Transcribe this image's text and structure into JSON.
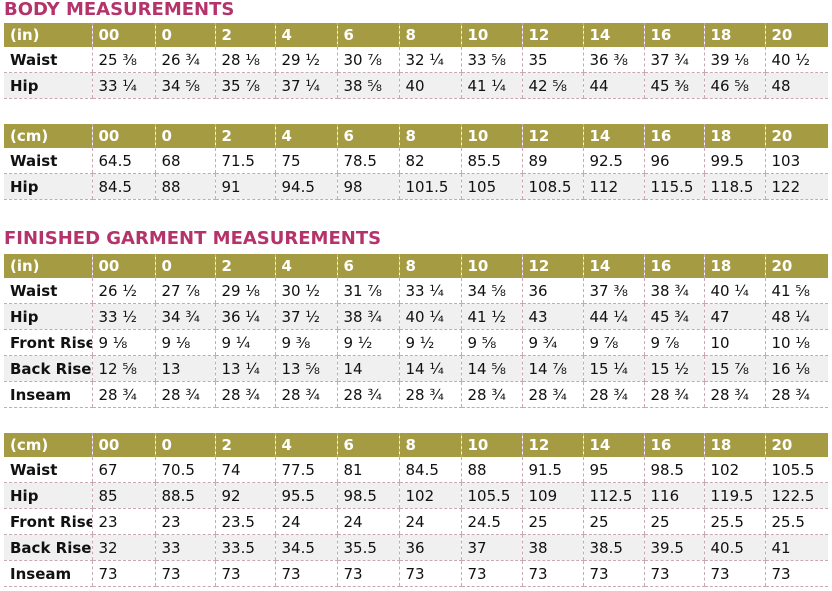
{
  "body": {
    "title": "BODY MEASUREMENTS",
    "in": {
      "header": [
        "(in)",
        "00",
        "0",
        "2",
        "4",
        "6",
        "8",
        "10",
        "12",
        "14",
        "16",
        "18",
        "20"
      ],
      "rows": [
        [
          "Waist",
          "25 ⅜",
          "26 ¾",
          "28 ⅛",
          "29 ½",
          "30 ⅞",
          "32 ¼",
          "33 ⅝",
          "35",
          "36 ⅜",
          "37 ¾",
          "39 ⅛",
          "40 ½"
        ],
        [
          "Hip",
          "33 ¼",
          "34 ⅝",
          "35 ⅞",
          "37 ¼",
          "38 ⅝",
          "40",
          "41 ¼",
          "42 ⅝",
          "44",
          "45 ⅜",
          "46 ⅝",
          "48"
        ]
      ]
    },
    "cm": {
      "header": [
        "(cm)",
        "00",
        "0",
        "2",
        "4",
        "6",
        "8",
        "10",
        "12",
        "14",
        "16",
        "18",
        "20"
      ],
      "rows": [
        [
          "Waist",
          "64.5",
          "68",
          "71.5",
          "75",
          "78.5",
          "82",
          "85.5",
          "89",
          "92.5",
          "96",
          "99.5",
          "103"
        ],
        [
          "Hip",
          "84.5",
          "88",
          "91",
          "94.5",
          "98",
          "101.5",
          "105",
          "108.5",
          "112",
          "115.5",
          "118.5",
          "122"
        ]
      ]
    }
  },
  "finished": {
    "title": "FINISHED GARMENT MEASUREMENTS",
    "in": {
      "header": [
        "(in)",
        "00",
        "0",
        "2",
        "4",
        "6",
        "8",
        "10",
        "12",
        "14",
        "16",
        "18",
        "20"
      ],
      "rows": [
        [
          "Waist",
          "26 ½",
          "27 ⅞",
          "29 ⅛",
          "30 ½",
          "31 ⅞",
          "33 ¼",
          "34 ⅝",
          "36",
          "37 ⅜",
          "38 ¾",
          "40 ¼",
          "41 ⅝"
        ],
        [
          "Hip",
          "33 ½",
          "34 ¾",
          "36 ¼",
          "37 ½",
          "38 ¾",
          "40 ¼",
          "41 ½",
          "43",
          "44 ¼",
          "45 ¾",
          "47",
          "48 ¼"
        ],
        [
          "Front Rise",
          "9 ⅛",
          "9 ⅛",
          "9 ¼",
          "9 ⅜",
          "9 ½",
          "9 ½",
          "9 ⅝",
          "9 ¾",
          "9 ⅞",
          "9 ⅞",
          "10",
          "10 ⅛"
        ],
        [
          "Back Rise",
          "12 ⅝",
          "13",
          "13 ¼",
          "13 ⅝",
          "14",
          "14 ¼",
          "14 ⅝",
          "14 ⅞",
          "15 ¼",
          "15 ½",
          "15 ⅞",
          "16 ⅛"
        ],
        [
          "Inseam",
          "28 ¾",
          "28 ¾",
          "28 ¾",
          "28 ¾",
          "28 ¾",
          "28 ¾",
          "28 ¾",
          "28 ¾",
          "28 ¾",
          "28 ¾",
          "28 ¾",
          "28 ¾"
        ]
      ]
    },
    "cm": {
      "header": [
        "(cm)",
        "00",
        "0",
        "2",
        "4",
        "6",
        "8",
        "10",
        "12",
        "14",
        "16",
        "18",
        "20"
      ],
      "rows": [
        [
          "Waist",
          "67",
          "70.5",
          "74",
          "77.5",
          "81",
          "84.5",
          "88",
          "91.5",
          "95",
          "98.5",
          "102",
          "105.5"
        ],
        [
          "Hip",
          "85",
          "88.5",
          "92",
          "95.5",
          "98.5",
          "102",
          "105.5",
          "109",
          "112.5",
          "116",
          "119.5",
          "122.5"
        ],
        [
          "Front Rise",
          "23",
          "23",
          "23.5",
          "24",
          "24",
          "24",
          "24.5",
          "25",
          "25",
          "25",
          "25.5",
          "25.5"
        ],
        [
          "Back Rise",
          "32",
          "33",
          "33.5",
          "34.5",
          "35.5",
          "36",
          "37",
          "38",
          "38.5",
          "39.5",
          "40.5",
          "41"
        ],
        [
          "Inseam",
          "73",
          "73",
          "73",
          "73",
          "73",
          "73",
          "73",
          "73",
          "73",
          "73",
          "73",
          "73"
        ]
      ]
    }
  }
}
